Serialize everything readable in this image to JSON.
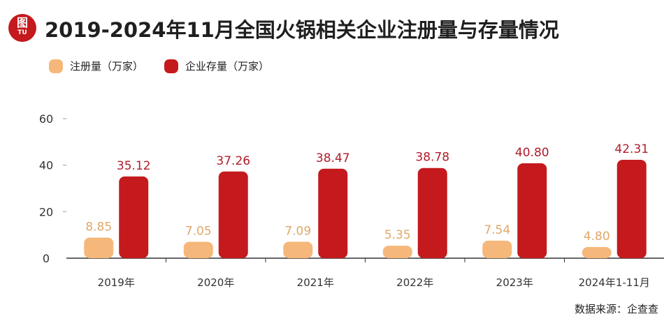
{
  "logo": {
    "main": "图",
    "sub": "TU"
  },
  "title": "2019-2024年11月全国火锅相关企业注册量与存量情况",
  "source": "数据来源：企查查",
  "colors": {
    "registration": "#f5b87a",
    "stock": "#c41a1d",
    "registration_label": "#e0a76a",
    "stock_label": "#b01c2a",
    "axis": "#333333"
  },
  "chart_data": {
    "type": "bar",
    "categories": [
      "2019年",
      "2020年",
      "2021年",
      "2022年",
      "2023年",
      "2024年1-11月"
    ],
    "series": [
      {
        "name": "注册量（万家）",
        "values": [
          8.85,
          7.05,
          7.09,
          5.35,
          7.54,
          4.8
        ],
        "labels": [
          "8.85",
          "7.05",
          "7.09",
          "5.35",
          "7.54",
          "4.80"
        ]
      },
      {
        "name": "企业存量（万家）",
        "values": [
          35.12,
          37.26,
          38.47,
          38.78,
          40.8,
          42.31
        ],
        "labels": [
          "35.12",
          "37.26",
          "38.47",
          "38.78",
          "40.80",
          "42.31"
        ]
      }
    ],
    "y_ticks": [
      "0",
      "20",
      "40",
      "60"
    ],
    "ylim": [
      0,
      60
    ],
    "grid": false,
    "legend_position": "top-left"
  }
}
